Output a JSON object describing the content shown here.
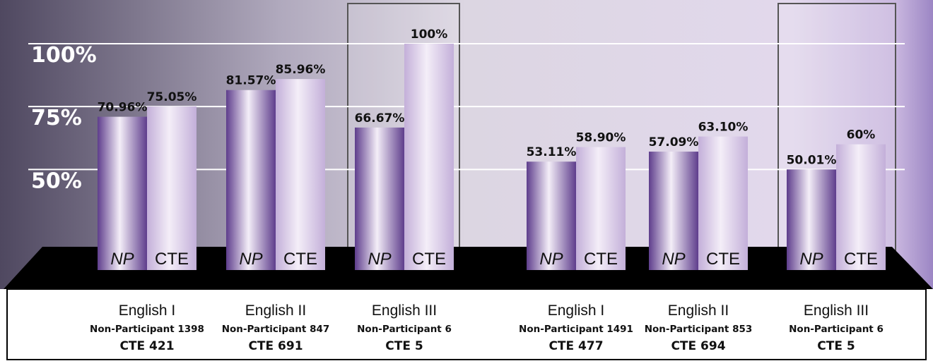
{
  "chart_data": {
    "type": "bar",
    "categories": [
      "English I",
      "English II",
      "English III",
      "English I",
      "English II",
      "English III"
    ],
    "category_details": [
      {
        "participants": "Non-Participant 1398",
        "cte": "CTE 421"
      },
      {
        "participants": "Non-Participant 847",
        "cte": "CTE 691"
      },
      {
        "participants": "Non-Participant 6",
        "cte": "CTE 5"
      },
      {
        "participants": "Non-Participant 1491",
        "cte": "CTE 477"
      },
      {
        "participants": "Non-Participant 853",
        "cte": "CTE 694"
      },
      {
        "participants": "Non-Participant 6",
        "cte": "CTE 5"
      }
    ],
    "series": [
      {
        "name": "NP",
        "color": "#5e3d8c",
        "values": [
          70.96,
          81.57,
          66.67,
          53.11,
          57.09,
          50.01
        ],
        "value_labels": [
          "70.96%",
          "81.57%",
          "66.67%",
          "53.11%",
          "57.09%",
          "50.01%"
        ]
      },
      {
        "name": "CTE",
        "color": "#c3afd9",
        "values": [
          75.05,
          85.96,
          100,
          58.9,
          63.1,
          60
        ],
        "value_labels": [
          "75.05%",
          "85.96%",
          "100%",
          "58.90%",
          "63.10%",
          "60%"
        ]
      }
    ],
    "ylim": [
      10,
      100
    ],
    "yticks": [
      {
        "value": 50,
        "label": "50%"
      },
      {
        "value": 75,
        "label": "75%"
      },
      {
        "value": 100,
        "label": "100%"
      }
    ],
    "grid": true
  }
}
